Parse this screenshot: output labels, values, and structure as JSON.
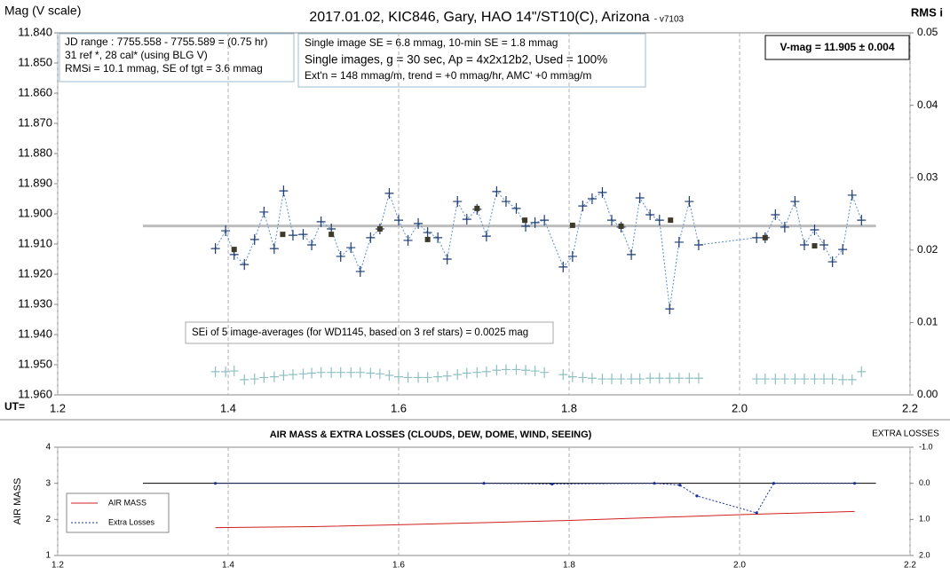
{
  "chart_data": [
    {
      "type": "line",
      "title": "2017.01.02, KIC846, Gary, HAO 14\"/ST10(C), Arizona",
      "version": "- v7103",
      "y_label": "Mag (V scale)",
      "y2_label": "RMS i",
      "x_label": "UT=",
      "xlim": [
        1.2,
        2.2
      ],
      "xticks": [
        1.2,
        1.4,
        1.6,
        1.8,
        {
          "value": 2,
          "label": "2.0"
        },
        2.2
      ],
      "ylim": [
        11.96,
        11.84
      ],
      "yticks": [
        {
          "value": 11.84,
          "label": "11.840"
        },
        {
          "value": 11.85,
          "label": "11.850"
        },
        {
          "value": 11.86,
          "label": "11.860"
        },
        {
          "value": 11.87,
          "label": "11.870"
        },
        {
          "value": 11.88,
          "label": "11.880"
        },
        {
          "value": 11.89,
          "label": "11.890"
        },
        {
          "value": 11.9,
          "label": "11.900"
        },
        {
          "value": 11.91,
          "label": "11.910"
        },
        {
          "value": 11.92,
          "label": "11.920"
        },
        {
          "value": 11.93,
          "label": "11.930"
        },
        {
          "value": 11.94,
          "label": "11.940"
        },
        {
          "value": 11.95,
          "label": "11.950"
        },
        {
          "value": 11.96,
          "label": "11.960"
        }
      ],
      "y2lim": [
        0,
        0.05
      ],
      "y2ticks": [
        {
          "value": 0,
          "label": "0.00"
        },
        {
          "value": 0.01,
          "label": "0.01"
        },
        {
          "value": 0.02,
          "label": "0.02"
        },
        {
          "value": 0.03,
          "label": "0.03"
        },
        {
          "value": 0.04,
          "label": "0.04"
        },
        {
          "value": 0.05,
          "label": "0.05"
        }
      ],
      "grid": "x",
      "reference_line": {
        "value": 11.904,
        "x": [
          1.3,
          2.16
        ],
        "color": "#bdbdbd"
      },
      "info_boxes": [
        {
          "lines": [
            "JD range  : 7755.558 - 7755.589 = (0.75 hr)",
            "31 ref *, 28 cal* (using BLG V)",
            "RMSi = 10.1 mmag, SE of tgt = 3.6 mmag"
          ]
        },
        {
          "lines": [
            "Single image SE = 6.8 mmag, 10-min SE = 1.8 mmag",
            "Single images, g = 30 sec, Ap = 4x2x12b2, Used = 100%",
            "Ext'n = 148 mmag/m, trend = +0 mmag/hr, AMC' +0 mmag/m"
          ]
        }
      ],
      "result": "V-mag = 11.905 ± 0.004",
      "note": "SEi of 5 image-averages (for WD1145, based on 3 ref stars) = 0.0025 mag",
      "series": [
        {
          "color": "#1f3b73",
          "line_color": "#5b8fd0",
          "line": "dotted",
          "marker": "plus",
          "x": [
            1.385,
            1.397,
            1.407,
            1.419,
            1.431,
            1.442,
            1.454,
            1.465,
            1.476,
            1.488,
            1.498,
            1.509,
            1.521,
            1.532,
            1.544,
            1.555,
            1.567,
            1.578,
            1.589,
            1.6,
            1.611,
            1.623,
            1.634,
            1.646,
            1.657,
            1.669,
            1.68,
            1.692,
            1.703,
            1.715,
            1.726,
            1.738,
            1.749,
            1.76,
            1.771,
            1.793,
            1.804,
            1.816,
            1.827,
            1.839,
            1.85,
            1.861,
            1.873,
            1.883,
            1.895,
            1.906,
            1.918,
            1.929,
            1.941,
            1.952,
            2.02,
            2.03,
            2.042,
            2.053,
            2.065,
            2.076,
            2.088,
            2.099,
            2.109,
            2.121,
            2.132,
            2.143
          ],
          "values": [
            11.9115,
            11.9056,
            11.9135,
            11.9168,
            11.9085,
            11.8994,
            11.9115,
            11.8924,
            11.9071,
            11.9068,
            11.9103,
            11.9026,
            11.905,
            11.9141,
            11.9112,
            11.9191,
            11.9079,
            11.905,
            11.8932,
            11.9021,
            11.9088,
            11.9032,
            11.9062,
            11.9079,
            11.915,
            11.8959,
            11.9018,
            11.8985,
            11.9074,
            11.8926,
            11.8959,
            11.8982,
            11.9041,
            11.9029,
            11.9021,
            11.9176,
            11.9141,
            11.8974,
            11.895,
            11.8929,
            11.9021,
            11.9044,
            11.9135,
            11.8947,
            11.9003,
            11.9021,
            11.9315,
            11.9094,
            11.8959,
            11.9103,
            11.9079,
            11.9079,
            11.9003,
            11.9044,
            11.8959,
            11.9103,
            11.9053,
            11.9103,
            11.9159,
            11.9118,
            11.8938,
            11.9021
          ]
        },
        {
          "color": "#3d3a2a",
          "marker": "square",
          "x": [
            1.407,
            1.464,
            1.521,
            1.578,
            1.634,
            1.692,
            1.748,
            1.804,
            1.861,
            1.919,
            2.03,
            2.088
          ],
          "values": [
            11.9118,
            11.9068,
            11.9068,
            11.905,
            11.9085,
            11.8982,
            11.9021,
            11.9038,
            11.9041,
            11.9021,
            11.9079,
            11.9106
          ]
        },
        {
          "color": "#8fc0c0",
          "marker": "plus",
          "axis": "y2",
          "x": [
            1.385,
            1.397,
            1.407,
            1.419,
            1.431,
            1.442,
            1.454,
            1.465,
            1.476,
            1.488,
            1.498,
            1.509,
            1.521,
            1.532,
            1.544,
            1.555,
            1.567,
            1.578,
            1.589,
            1.6,
            1.611,
            1.623,
            1.634,
            1.646,
            1.657,
            1.669,
            1.68,
            1.692,
            1.703,
            1.715,
            1.726,
            1.738,
            1.749,
            1.76,
            1.771,
            1.793,
            1.804,
            1.816,
            1.827,
            1.839,
            1.85,
            1.861,
            1.873,
            1.883,
            1.895,
            1.906,
            1.918,
            1.929,
            1.941,
            1.952,
            2.02,
            2.03,
            2.042,
            2.053,
            2.065,
            2.076,
            2.088,
            2.099,
            2.109,
            2.121,
            2.132,
            2.143
          ],
          "values": [
            0.0032,
            0.0032,
            0.0033,
            0.0021,
            0.0022,
            0.0024,
            0.0025,
            0.0027,
            0.0028,
            0.0029,
            0.003,
            0.0031,
            0.0031,
            0.0031,
            0.0031,
            0.0031,
            0.003,
            0.0029,
            0.0027,
            0.0025,
            0.0024,
            0.0024,
            0.0024,
            0.0025,
            0.0026,
            0.0028,
            0.003,
            0.0031,
            0.0032,
            0.0034,
            0.0035,
            0.0035,
            0.0034,
            0.0033,
            0.0031,
            0.0028,
            0.0025,
            0.0024,
            0.0023,
            0.0022,
            0.0022,
            0.0022,
            0.0022,
            0.0022,
            0.0023,
            0.0023,
            0.0023,
            0.0023,
            0.0023,
            0.0023,
            0.0022,
            0.0022,
            0.0022,
            0.0022,
            0.0022,
            0.0022,
            0.0022,
            0.0022,
            0.0022,
            0.0021,
            0.0021,
            0.0032
          ]
        }
      ]
    },
    {
      "type": "line",
      "title": "AIR MASS & EXTRA LOSSES (CLOUDS, DEW, DOME, WIND, SEEING)",
      "y_label": "AIR MASS",
      "y2_label": "EXTRA LOSSES",
      "xlim": [
        1.2,
        2.2
      ],
      "xticks": [
        1.2,
        1.4,
        1.6,
        1.8,
        {
          "value": 2,
          "label": "2.0"
        },
        2.2
      ],
      "ylim": [
        1,
        4
      ],
      "yticks": [
        1,
        2,
        3,
        4
      ],
      "y2lim": [
        2,
        -1
      ],
      "y2ticks": [
        {
          "value": -1,
          "label": "-1.0"
        },
        {
          "value": 0,
          "label": "0.0"
        },
        {
          "value": 1,
          "label": "1.0"
        },
        {
          "value": 2,
          "label": "2.0"
        }
      ],
      "grid": "x",
      "legend": "lower left",
      "reference_line": {
        "value": 3,
        "x": [
          1.3,
          2.16
        ],
        "color": "#000000"
      },
      "series": [
        {
          "name": "AIR MASS",
          "color": "#d02020",
          "line": "solid",
          "x": [
            1.385,
            1.5,
            1.6,
            1.7,
            1.8,
            1.9,
            2.0,
            2.135
          ],
          "values": [
            1.77,
            1.8,
            1.85,
            1.91,
            1.97,
            2.05,
            2.13,
            2.22
          ]
        },
        {
          "name": "Extra Losses",
          "color": "#1a2f9a",
          "line": "dotted",
          "marker": "dot",
          "axis": "y2",
          "x": [
            1.385,
            1.7,
            1.78,
            1.9,
            1.93,
            1.95,
            2.02,
            2.04,
            2.135
          ],
          "values": [
            0,
            0,
            0.02,
            0,
            0.05,
            0.35,
            0.82,
            0,
            0
          ]
        }
      ]
    }
  ]
}
